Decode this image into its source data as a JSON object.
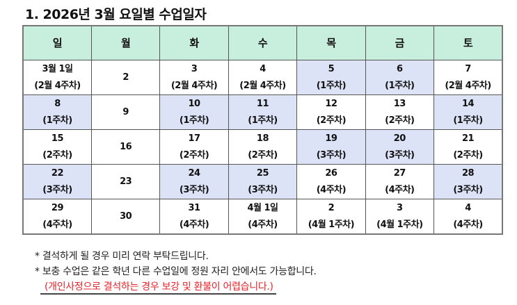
{
  "title": "1. 2026년 3월 요일별 수업일자",
  "colors": {
    "header_bg": "#c8eedd",
    "shaded_bg": "#dde3f6",
    "warning_text": "#e8232a"
  },
  "days": [
    "일",
    "월",
    "화",
    "수",
    "목",
    "금",
    "토"
  ],
  "rows": [
    [
      {
        "date": "3월 1일",
        "week": "(2월 4주차)",
        "shaded": false
      },
      {
        "date": "2",
        "week": "",
        "shaded": false
      },
      {
        "date": "3",
        "week": "(2월 4주차)",
        "shaded": false
      },
      {
        "date": "4",
        "week": "(2월 4주차)",
        "shaded": false
      },
      {
        "date": "5",
        "week": "(1주차)",
        "shaded": true
      },
      {
        "date": "6",
        "week": "(1주차)",
        "shaded": true
      },
      {
        "date": "7",
        "week": "(2월 4주차)",
        "shaded": false
      }
    ],
    [
      {
        "date": "8",
        "week": "(1주차)",
        "shaded": true
      },
      {
        "date": "9",
        "week": "",
        "shaded": false
      },
      {
        "date": "10",
        "week": "(1주차)",
        "shaded": true
      },
      {
        "date": "11",
        "week": "(1주차)",
        "shaded": true
      },
      {
        "date": "12",
        "week": "(2주차)",
        "shaded": false
      },
      {
        "date": "13",
        "week": "(2주차)",
        "shaded": false
      },
      {
        "date": "14",
        "week": "(1주차)",
        "shaded": true
      }
    ],
    [
      {
        "date": "15",
        "week": "(2주차)",
        "shaded": false
      },
      {
        "date": "16",
        "week": "",
        "shaded": false
      },
      {
        "date": "17",
        "week": "(2주차)",
        "shaded": false
      },
      {
        "date": "18",
        "week": "(2주차)",
        "shaded": false
      },
      {
        "date": "19",
        "week": "(3주차)",
        "shaded": true
      },
      {
        "date": "20",
        "week": "(3주차)",
        "shaded": true
      },
      {
        "date": "21",
        "week": "(2주차)",
        "shaded": false
      }
    ],
    [
      {
        "date": "22",
        "week": "(3주차)",
        "shaded": true
      },
      {
        "date": "23",
        "week": "",
        "shaded": false
      },
      {
        "date": "24",
        "week": "(3주차)",
        "shaded": true
      },
      {
        "date": "25",
        "week": "(3주차)",
        "shaded": true
      },
      {
        "date": "26",
        "week": "(4주차)",
        "shaded": false
      },
      {
        "date": "27",
        "week": "(4주차)",
        "shaded": false
      },
      {
        "date": "28",
        "week": "(3주차)",
        "shaded": true
      }
    ],
    [
      {
        "date": "29",
        "week": "(4주차)",
        "shaded": false
      },
      {
        "date": "30",
        "week": "",
        "shaded": false
      },
      {
        "date": "31",
        "week": "(4주차)",
        "shaded": false
      },
      {
        "date": "4월 1일",
        "week": "(4주차)",
        "shaded": false
      },
      {
        "date": "2",
        "week": "(4월 1주차)",
        "shaded": false
      },
      {
        "date": "3",
        "week": "(4월 1주차)",
        "shaded": false
      },
      {
        "date": "4",
        "week": "(4주차)",
        "shaded": false
      }
    ]
  ],
  "notes": [
    "* 결석하게 될 경우 미리 연락 부탁드립니다.",
    "* 보충 수업은 같은 학년 다른 수업일에 정원 자리 안에서도 가능합니다."
  ],
  "warning": "(개인사정으로 결석하는 경우 보강 및 환불이 어렵습니다.)"
}
